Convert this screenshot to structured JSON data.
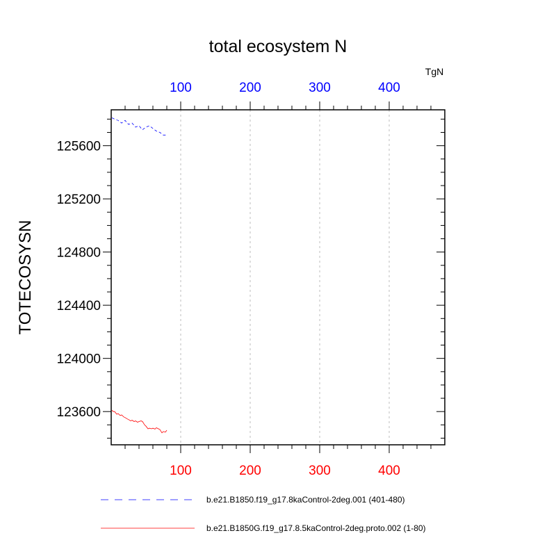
{
  "chart_data": {
    "type": "line",
    "title": "total ecosystem N",
    "ylabel": "TOTECOSYSN",
    "units_label": "TgN",
    "xlim": [
      0,
      480
    ],
    "ylim": [
      123350,
      125870
    ],
    "y_ticks": [
      123600,
      124000,
      124400,
      124800,
      125200,
      125600
    ],
    "top_x_ticks": [
      100,
      200,
      300,
      400
    ],
    "bottom_x_ticks": [
      100,
      200,
      300,
      400
    ],
    "grid": "vertical dashed at major x ticks",
    "colors": {
      "top_axis": "#0000ff",
      "bottom_axis": "#ff0000",
      "series_blue": "#0000ff",
      "series_red": "#ff0000"
    },
    "series": [
      {
        "name": "b.e21.B1850.f19_g17.8kaControl-2deg.001 (401-480)",
        "axis": "top",
        "color": "#0000ff",
        "dash": "dashed",
        "x": [
          1,
          5,
          10,
          15,
          20,
          25,
          30,
          35,
          40,
          45,
          50,
          55,
          60,
          65,
          70,
          75,
          80
        ],
        "y": [
          125810,
          125800,
          125790,
          125770,
          125790,
          125760,
          125770,
          125740,
          125750,
          125720,
          125740,
          125750,
          125730,
          125710,
          125700,
          125680,
          125680
        ]
      },
      {
        "name": "b.e21.B1850G.f19_g17.8.5kaControl-2deg.proto.002 (1-80)",
        "axis": "bottom",
        "color": "#ff0000",
        "dash": "solid",
        "x": [
          1,
          3,
          5,
          8,
          10,
          13,
          15,
          18,
          20,
          23,
          25,
          28,
          30,
          33,
          35,
          38,
          40,
          43,
          45,
          48,
          50,
          53,
          55,
          58,
          60,
          63,
          65,
          68,
          70,
          73,
          75,
          78,
          80
        ],
        "y": [
          123610,
          123600,
          123600,
          123580,
          123585,
          123570,
          123575,
          123560,
          123555,
          123545,
          123540,
          123530,
          123535,
          123525,
          123530,
          123520,
          123525,
          123530,
          123525,
          123500,
          123490,
          123470,
          123475,
          123470,
          123475,
          123468,
          123478,
          123470,
          123465,
          123440,
          123450,
          123445,
          123460
        ]
      }
    ]
  }
}
